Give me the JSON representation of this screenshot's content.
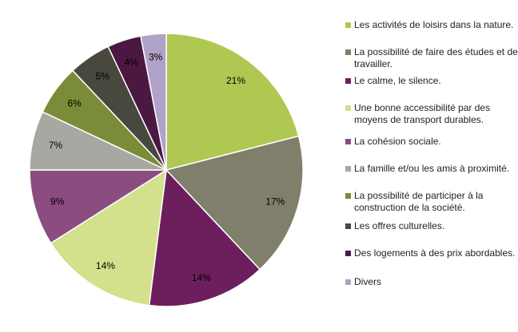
{
  "chart_data": {
    "type": "pie",
    "title": "",
    "legend_position": "right",
    "categories": [
      "Les activités de loisirs dans la nature.",
      "La possibilité de faire des études et de travailler.",
      "Le calme, le silence.",
      "Une bonne accessibilité par des moyens de transport durables.",
      "La cohésion sociale.",
      "La famille et/ou les amis à proximité.",
      "La possibilité de participer à la construction de la société.",
      "Les offres culturelles.",
      "Des logements à des prix abordables.",
      "Divers"
    ],
    "values": [
      21,
      17,
      14,
      14,
      9,
      7,
      6,
      5,
      4,
      3
    ],
    "labels": [
      "21%",
      "17%",
      "14%",
      "14%",
      "9%",
      "7%",
      "6%",
      "5%",
      "4%",
      "3%"
    ],
    "colors": [
      "#afc851",
      "#7f7f6b",
      "#6c1f5c",
      "#d3e08c",
      "#8b4c80",
      "#a8a8a2",
      "#7b8c38",
      "#48483f",
      "#4b1842",
      "#b0a2c8"
    ]
  }
}
